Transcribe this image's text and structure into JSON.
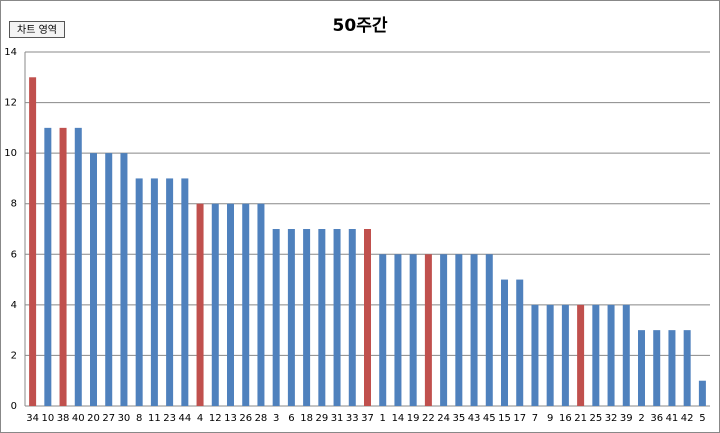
{
  "chart_data": {
    "type": "bar",
    "title": "50주간",
    "tooltip": "차트 영역",
    "categories": [
      "34",
      "10",
      "38",
      "40",
      "20",
      "27",
      "30",
      "8",
      "11",
      "23",
      "44",
      "4",
      "12",
      "13",
      "26",
      "28",
      "3",
      "6",
      "18",
      "29",
      "31",
      "33",
      "37",
      "1",
      "14",
      "19",
      "22",
      "24",
      "35",
      "43",
      "45",
      "15",
      "17",
      "7",
      "9",
      "16",
      "21",
      "25",
      "32",
      "39",
      "2",
      "36",
      "41",
      "42",
      "5"
    ],
    "values": [
      13,
      11,
      11,
      11,
      10,
      10,
      10,
      9,
      9,
      9,
      9,
      8,
      8,
      8,
      8,
      8,
      7,
      7,
      7,
      7,
      7,
      7,
      7,
      6,
      6,
      6,
      6,
      6,
      6,
      6,
      6,
      5,
      5,
      4,
      4,
      4,
      4,
      4,
      4,
      4,
      3,
      3,
      3,
      3,
      1
    ],
    "colors": [
      "#c0504d",
      "#4f81bd",
      "#c0504d",
      "#4f81bd",
      "#4f81bd",
      "#4f81bd",
      "#4f81bd",
      "#4f81bd",
      "#4f81bd",
      "#4f81bd",
      "#4f81bd",
      "#c0504d",
      "#4f81bd",
      "#4f81bd",
      "#4f81bd",
      "#4f81bd",
      "#4f81bd",
      "#4f81bd",
      "#4f81bd",
      "#4f81bd",
      "#4f81bd",
      "#4f81bd",
      "#c0504d",
      "#4f81bd",
      "#4f81bd",
      "#4f81bd",
      "#c0504d",
      "#4f81bd",
      "#4f81bd",
      "#4f81bd",
      "#4f81bd",
      "#4f81bd",
      "#4f81bd",
      "#4f81bd",
      "#4f81bd",
      "#4f81bd",
      "#c0504d",
      "#4f81bd",
      "#4f81bd",
      "#4f81bd",
      "#4f81bd",
      "#4f81bd",
      "#4f81bd",
      "#4f81bd",
      "#4f81bd"
    ],
    "ylim": [
      0,
      14
    ],
    "yticks": [
      0,
      2,
      4,
      6,
      8,
      10,
      12,
      14
    ],
    "grid": true
  }
}
